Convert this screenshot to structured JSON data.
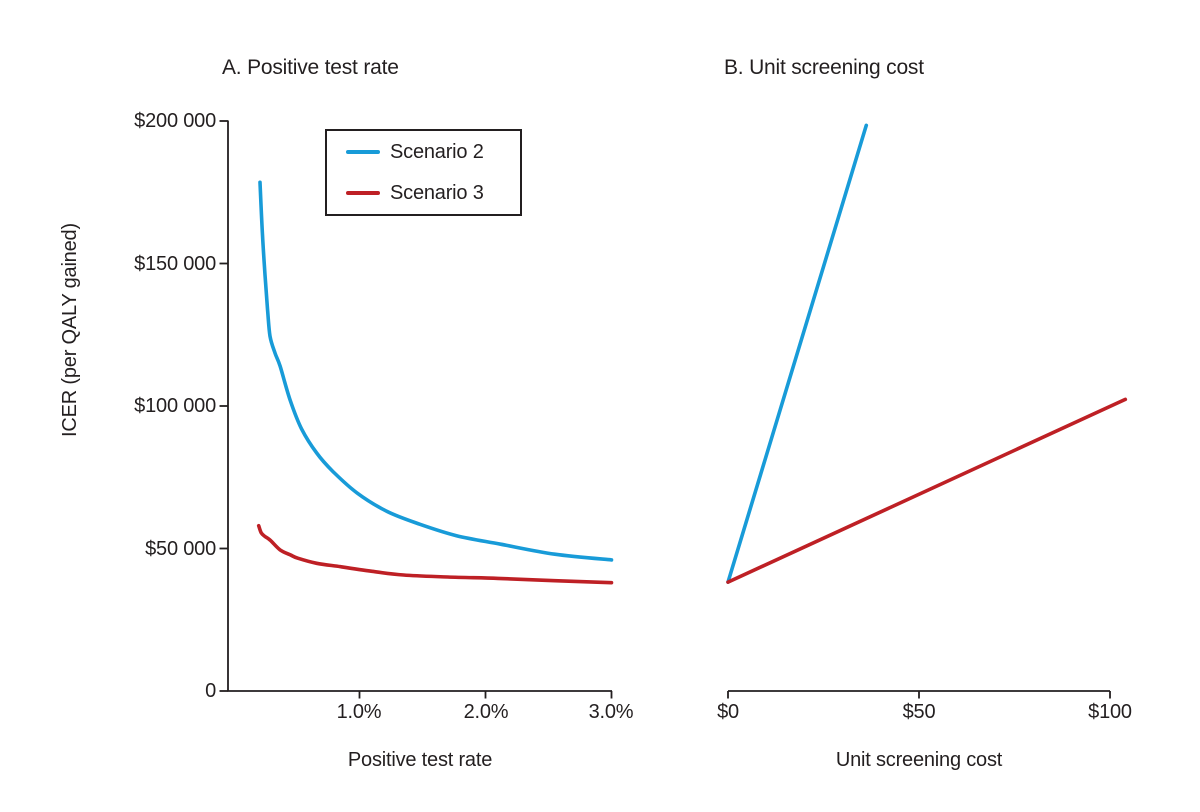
{
  "figure": {
    "y_axis_label": "ICER (per QALY gained)",
    "colors": {
      "scenario2": "#189BD8",
      "scenario3": "#BE2025",
      "axis": "#231F20",
      "background": "#FFFFFF"
    },
    "legend": {
      "position": "top-left-inside-panel-A",
      "items": [
        {
          "label": "Scenario 2",
          "color": "#189BD8"
        },
        {
          "label": "Scenario 3",
          "color": "#BE2025"
        }
      ]
    }
  },
  "chart_data": [
    {
      "type": "line",
      "panel": "A",
      "title": "A. Positive test rate",
      "xlabel": "Positive test rate",
      "ylabel": "ICER (per QALY gained)",
      "xlim_percent": [
        0,
        3.0
      ],
      "ylim_dollars": [
        0,
        200000
      ],
      "grid": false,
      "xticks": [
        {
          "value": 1.0,
          "label": "1.0%"
        },
        {
          "value": 2.0,
          "label": "2.0%"
        },
        {
          "value": 3.0,
          "label": "3.0%"
        }
      ],
      "yticks": [
        {
          "value": 200000,
          "label": "$200 000"
        },
        {
          "value": 150000,
          "label": "$150 000"
        },
        {
          "value": 100000,
          "label": "$100 000"
        },
        {
          "value": 50000,
          "label": "$50 000"
        },
        {
          "value": 0,
          "label": "0"
        }
      ],
      "series": [
        {
          "name": "Scenario 2",
          "color": "#189BD8",
          "points": [
            [
              0.21,
              178500
            ],
            [
              0.23,
              160000
            ],
            [
              0.25,
              146000
            ],
            [
              0.27,
              134000
            ],
            [
              0.29,
              124500
            ],
            [
              0.33,
              118500
            ],
            [
              0.37,
              114000
            ],
            [
              0.45,
              102000
            ],
            [
              0.54,
              92000
            ],
            [
              0.66,
              83500
            ],
            [
              0.79,
              77000
            ],
            [
              0.98,
              69500
            ],
            [
              1.22,
              63000
            ],
            [
              1.48,
              58500
            ],
            [
              1.77,
              54500
            ],
            [
              2.12,
              51500
            ],
            [
              2.55,
              48000
            ],
            [
              3.0,
              46000
            ]
          ]
        },
        {
          "name": "Scenario 3",
          "color": "#BE2025",
          "points": [
            [
              0.2,
              58000
            ],
            [
              0.22,
              55500
            ],
            [
              0.25,
              54200
            ],
            [
              0.29,
              53000
            ],
            [
              0.37,
              49500
            ],
            [
              0.45,
              47800
            ],
            [
              0.51,
              46600
            ],
            [
              0.66,
              44800
            ],
            [
              0.85,
              43600
            ],
            [
              1.1,
              42000
            ],
            [
              1.35,
              40700
            ],
            [
              1.7,
              40000
            ],
            [
              2.1,
              39500
            ],
            [
              2.55,
              38700
            ],
            [
              3.0,
              38000
            ]
          ]
        }
      ]
    },
    {
      "type": "line",
      "panel": "B",
      "title": "B. Unit screening cost",
      "xlabel": "Unit screening cost",
      "xlim_dollars": [
        0,
        104
      ],
      "ylim_dollars": [
        0,
        200000
      ],
      "grid": false,
      "xticks": [
        {
          "value": 0,
          "label": "$0"
        },
        {
          "value": 50,
          "label": "$50"
        },
        {
          "value": 100,
          "label": "$100"
        }
      ],
      "series": [
        {
          "name": "Scenario 2",
          "color": "#189BD8",
          "points": [
            [
              0,
              38200
            ],
            [
              36.2,
              198500
            ]
          ]
        },
        {
          "name": "Scenario 3",
          "color": "#BE2025",
          "points": [
            [
              0,
              38200
            ],
            [
              104,
              102300
            ]
          ]
        }
      ]
    }
  ]
}
